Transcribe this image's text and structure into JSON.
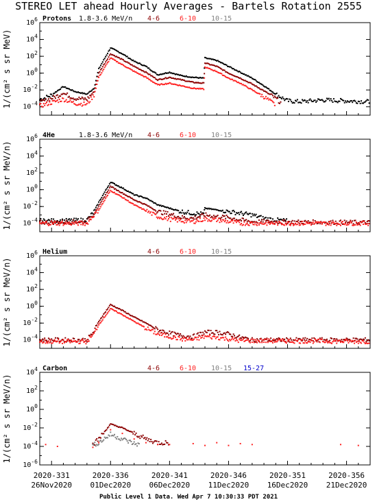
{
  "title": "STEREO LET ahead Hourly Averages - Bartels Rotation 2555",
  "footer": "Public Level 1 Data. Wed Apr  7 10:30:33 PDT 2021",
  "colors": {
    "black": "#000000",
    "dark_red": "#8b0000",
    "red": "#ff2020",
    "gray": "#808080",
    "blue": "#0000cc"
  },
  "x_ticks": [
    {
      "doy": "2020-331",
      "date": "26Nov2020"
    },
    {
      "doy": "2020-336",
      "date": "01Dec2020"
    },
    {
      "doy": "2020-341",
      "date": "06Dec2020"
    },
    {
      "doy": "2020-346",
      "date": "11Dec2020"
    },
    {
      "doy": "2020-351",
      "date": "16Dec2020"
    },
    {
      "doy": "2020-356",
      "date": "21Dec2020"
    }
  ],
  "chart_data": [
    {
      "type": "scatter",
      "panel_label": "Protons",
      "ylabel": "1/(cm² s sr MeV)",
      "ylim_log10": [
        -5,
        6
      ],
      "y_tick_exponents": [
        -4,
        -2,
        0,
        2,
        4,
        6
      ],
      "xlim_doy": [
        330,
        358
      ],
      "legend": [
        "1.8-3.6 MeV/n",
        "4-6",
        "6-10",
        "10-15"
      ],
      "series": [
        {
          "name": "1.8-3.6 MeV/n",
          "color": "black",
          "points": [
            [
              330,
              -3.2
            ],
            [
              331,
              -2.6
            ],
            [
              332,
              -1.6
            ],
            [
              333,
              -2.2
            ],
            [
              334,
              -2.5
            ],
            [
              334.6,
              -1.8
            ],
            [
              335,
              0.5
            ],
            [
              336,
              3.0
            ],
            [
              337,
              2.3
            ],
            [
              338,
              1.4
            ],
            [
              339,
              0.8
            ],
            [
              340,
              -0.2
            ],
            [
              341,
              0.1
            ],
            [
              342,
              -0.3
            ],
            [
              343,
              -0.5
            ],
            [
              343.9,
              -0.6
            ],
            [
              344,
              1.8
            ],
            [
              345,
              1.5
            ],
            [
              346,
              0.8
            ],
            [
              347,
              0.1
            ],
            [
              348,
              -0.6
            ],
            [
              349,
              -1.5
            ],
            [
              350,
              -2.5
            ],
            [
              351,
              -3.3
            ],
            [
              352,
              -3.4
            ],
            [
              354,
              -3.2
            ],
            [
              356,
              -3.3
            ],
            [
              358,
              -3.4
            ]
          ]
        },
        {
          "name": "4-6",
          "color": "dark_red",
          "points": [
            [
              330,
              -3.5
            ],
            [
              331,
              -3.0
            ],
            [
              332,
              -2.4
            ],
            [
              333,
              -3.0
            ],
            [
              334,
              -3.1
            ],
            [
              334.6,
              -2.2
            ],
            [
              335,
              0.0
            ],
            [
              336,
              2.3
            ],
            [
              337,
              1.6
            ],
            [
              338,
              0.8
            ],
            [
              339,
              0.1
            ],
            [
              340,
              -0.8
            ],
            [
              341,
              -0.5
            ],
            [
              342,
              -0.8
            ],
            [
              343,
              -1.1
            ],
            [
              343.9,
              -1.2
            ],
            [
              344,
              1.2
            ],
            [
              345,
              0.8
            ],
            [
              346,
              0.0
            ],
            [
              347,
              -0.6
            ],
            [
              348,
              -1.3
            ],
            [
              349,
              -2.1
            ],
            [
              350,
              -3.0
            ],
            [
              350.5,
              -3.6
            ]
          ]
        },
        {
          "name": "6-10",
          "color": "red",
          "points": [
            [
              330,
              -3.9
            ],
            [
              331,
              -3.5
            ],
            [
              332,
              -3.1
            ],
            [
              333,
              -3.6
            ],
            [
              334,
              -3.7
            ],
            [
              334.6,
              -2.6
            ],
            [
              335,
              -0.5
            ],
            [
              336,
              1.8
            ],
            [
              337,
              1.0
            ],
            [
              338,
              0.2
            ],
            [
              339,
              -0.5
            ],
            [
              340,
              -1.4
            ],
            [
              341,
              -1.2
            ],
            [
              342,
              -1.5
            ],
            [
              343,
              -1.8
            ],
            [
              343.9,
              -1.9
            ],
            [
              344,
              0.7
            ],
            [
              345,
              0.2
            ],
            [
              346,
              -0.6
            ],
            [
              347,
              -1.2
            ],
            [
              348,
              -2.0
            ],
            [
              349,
              -2.8
            ],
            [
              350,
              -3.8
            ]
          ]
        }
      ]
    },
    {
      "type": "scatter",
      "panel_label": "4He",
      "ylabel": "1/(cm² s sr MeV/n)",
      "ylim_log10": [
        -5,
        6
      ],
      "y_tick_exponents": [
        -4,
        -2,
        0,
        2,
        4,
        6
      ],
      "xlim_doy": [
        330,
        358
      ],
      "legend": [
        "1.8-3.6 MeV/n",
        "4-6",
        "6-10",
        "10-15"
      ],
      "series": [
        {
          "name": "1.8-3.6 MeV/n",
          "color": "black",
          "points": [
            [
              330,
              -3.7
            ],
            [
              332,
              -3.7
            ],
            [
              334,
              -3.6
            ],
            [
              334.6,
              -2.6
            ],
            [
              335,
              -1.5
            ],
            [
              336,
              0.9
            ],
            [
              337,
              0.2
            ],
            [
              338,
              -0.6
            ],
            [
              339,
              -1.0
            ],
            [
              340,
              -1.8
            ],
            [
              341,
              -2.2
            ],
            [
              342,
              -2.6
            ],
            [
              343,
              -2.8
            ],
            [
              343.9,
              -2.9
            ],
            [
              344,
              -2.2
            ],
            [
              345,
              -2.4
            ],
            [
              346,
              -2.6
            ],
            [
              347,
              -2.8
            ],
            [
              348,
              -3.0
            ],
            [
              349,
              -3.4
            ],
            [
              350,
              -3.6
            ],
            [
              351,
              -3.7
            ]
          ]
        },
        {
          "name": "4-6",
          "color": "dark_red",
          "points": [
            [
              330,
              -3.9
            ],
            [
              334,
              -3.8
            ],
            [
              334.6,
              -2.8
            ],
            [
              335,
              -2.0
            ],
            [
              336,
              0.4
            ],
            [
              337,
              -0.4
            ],
            [
              338,
              -1.2
            ],
            [
              339,
              -1.8
            ],
            [
              340,
              -2.6
            ],
            [
              341,
              -2.9
            ],
            [
              342,
              -3.3
            ],
            [
              343,
              -3.4
            ],
            [
              344,
              -3.0
            ],
            [
              345,
              -3.2
            ],
            [
              346,
              -3.3
            ],
            [
              347,
              -3.6
            ],
            [
              348,
              -3.8
            ],
            [
              358,
              -3.9
            ]
          ]
        },
        {
          "name": "6-10",
          "color": "red",
          "points": [
            [
              330,
              -4.0
            ],
            [
              334,
              -4.0
            ],
            [
              334.6,
              -3.0
            ],
            [
              335,
              -2.4
            ],
            [
              336,
              -0.1
            ],
            [
              337,
              -0.9
            ],
            [
              338,
              -1.8
            ],
            [
              339,
              -2.5
            ],
            [
              340,
              -3.2
            ],
            [
              341,
              -3.5
            ],
            [
              342,
              -3.7
            ],
            [
              343,
              -3.8
            ],
            [
              344,
              -3.5
            ],
            [
              345,
              -3.6
            ],
            [
              346,
              -3.8
            ],
            [
              347,
              -4.0
            ],
            [
              358,
              -4.0
            ]
          ]
        }
      ]
    },
    {
      "type": "scatter",
      "panel_label": "Helium",
      "ylabel": "1/(cm² s sr MeV/n)",
      "ylim_log10": [
        -5,
        6
      ],
      "y_tick_exponents": [
        -4,
        -2,
        0,
        2,
        4,
        6
      ],
      "xlim_doy": [
        330,
        358
      ],
      "legend": [
        "4-6",
        "6-10",
        "10-15"
      ],
      "series": [
        {
          "name": "4-6",
          "color": "dark_red",
          "points": [
            [
              330,
              -4.0
            ],
            [
              334,
              -4.0
            ],
            [
              334.6,
              -3.0
            ],
            [
              335,
              -1.8
            ],
            [
              336,
              0.2
            ],
            [
              337,
              -0.5
            ],
            [
              338,
              -1.3
            ],
            [
              339,
              -2.0
            ],
            [
              340,
              -2.8
            ],
            [
              341,
              -3.2
            ],
            [
              342,
              -3.5
            ],
            [
              343,
              -3.6
            ],
            [
              344,
              -3.1
            ],
            [
              345,
              -3.1
            ],
            [
              346,
              -3.3
            ],
            [
              347,
              -3.7
            ],
            [
              348,
              -4.0
            ],
            [
              358,
              -4.0
            ]
          ]
        },
        {
          "name": "6-10",
          "color": "red",
          "points": [
            [
              330,
              -4.2
            ],
            [
              334,
              -4.2
            ],
            [
              334.6,
              -3.3
            ],
            [
              335,
              -2.2
            ],
            [
              336,
              -0.3
            ],
            [
              337,
              -1.0
            ],
            [
              338,
              -1.8
            ],
            [
              339,
              -2.6
            ],
            [
              340,
              -3.3
            ],
            [
              341,
              -3.6
            ],
            [
              342,
              -3.9
            ],
            [
              343,
              -4.0
            ],
            [
              344,
              -3.6
            ],
            [
              345,
              -3.7
            ],
            [
              346,
              -3.9
            ],
            [
              347,
              -4.1
            ],
            [
              358,
              -4.2
            ]
          ]
        }
      ]
    },
    {
      "type": "scatter",
      "panel_label": "Carbon",
      "ylabel": "1/(cm² s sr MeV/n)",
      "ylim_log10": [
        -6,
        4
      ],
      "y_tick_exponents": [
        -6,
        -4,
        -2,
        0,
        2,
        4
      ],
      "xlim_doy": [
        330,
        358
      ],
      "legend": [
        "4-6",
        "6-10",
        "10-15",
        "15-27"
      ],
      "series": [
        {
          "name": "4-6",
          "color": "dark_red",
          "points": [
            [
              334.5,
              -3.8
            ],
            [
              335,
              -3.2
            ],
            [
              336,
              -1.6
            ],
            [
              337,
              -2.0
            ],
            [
              338,
              -2.6
            ],
            [
              339,
              -3.2
            ],
            [
              340,
              -3.6
            ],
            [
              341,
              -3.6
            ]
          ]
        },
        {
          "name": "6-10",
          "color": "red",
          "points": [
            [
              330.5,
              -3.8
            ],
            [
              331.5,
              -4.0
            ],
            [
              334.5,
              -4.1
            ],
            [
              335,
              -3.6
            ],
            [
              336,
              -2.2
            ],
            [
              337,
              -2.6
            ],
            [
              338,
              -3.2
            ],
            [
              339,
              -3.6
            ],
            [
              340,
              -3.8
            ],
            [
              341,
              -3.8
            ],
            [
              343,
              -3.7
            ],
            [
              344,
              -3.9
            ],
            [
              345,
              -3.6
            ],
            [
              346,
              -3.9
            ],
            [
              347,
              -3.7
            ],
            [
              348,
              -3.8
            ],
            [
              355.5,
              -3.8
            ],
            [
              357,
              -3.9
            ]
          ]
        },
        {
          "name": "10-15",
          "color": "gray",
          "points": [
            [
              334.5,
              -3.9
            ],
            [
              335,
              -3.6
            ],
            [
              336,
              -2.7
            ],
            [
              337,
              -3.2
            ],
            [
              338,
              -3.7
            ],
            [
              338.5,
              -3.8
            ]
          ]
        }
      ]
    }
  ]
}
